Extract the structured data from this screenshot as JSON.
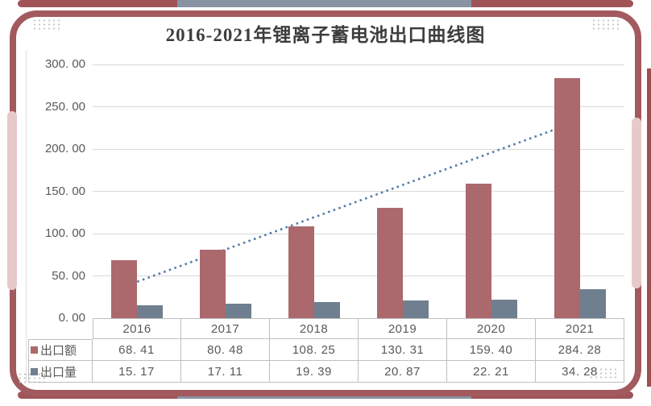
{
  "title": "2016-2021年锂离子蓄电池出口曲线图",
  "colors": {
    "bar_export_value": "#ab696d",
    "bar_export_volume": "#6f7f8f",
    "trendline": "#567ca8",
    "frame_red": "#a25a5e",
    "frame_gray": "#8793a3",
    "frame_pink": "#e7c9ca",
    "gridline": "#d9d9d9",
    "table_border": "#bfbfbf",
    "text": "#595959",
    "title_text": "#3d3d3d"
  },
  "chart_data": {
    "type": "bar",
    "title": "2016-2021年锂离子蓄电池出口曲线图",
    "categories": [
      "2016",
      "2017",
      "2018",
      "2019",
      "2020",
      "2021"
    ],
    "series": [
      {
        "name": "出口额",
        "color": "#ab696d",
        "values": [
          68.41,
          80.48,
          108.25,
          130.31,
          159.4,
          284.28
        ],
        "display": [
          "68. 41",
          "80. 48",
          "108. 25",
          "130. 31",
          "159. 40",
          "284. 28"
        ]
      },
      {
        "name": "出口量",
        "color": "#6f7f8f",
        "values": [
          15.17,
          17.11,
          19.39,
          20.87,
          22.21,
          34.28
        ],
        "display": [
          "15. 17",
          "17. 11",
          "19. 39",
          "20. 87",
          "22. 21",
          "34. 28"
        ]
      }
    ],
    "trendline": {
      "for_series": "出口额",
      "type": "linear",
      "style": "dotted",
      "color": "#567ca8",
      "start_value": 43,
      "end_value": 234
    },
    "ylim": [
      0,
      300
    ],
    "ytick_step": 50,
    "ytick_labels": [
      "0. 00",
      "50. 00",
      "100. 00",
      "150. 00",
      "200. 00",
      "250. 00",
      "300. 00"
    ],
    "grid": true,
    "legend_position": "table-rows-left",
    "data_table_shown": true
  }
}
